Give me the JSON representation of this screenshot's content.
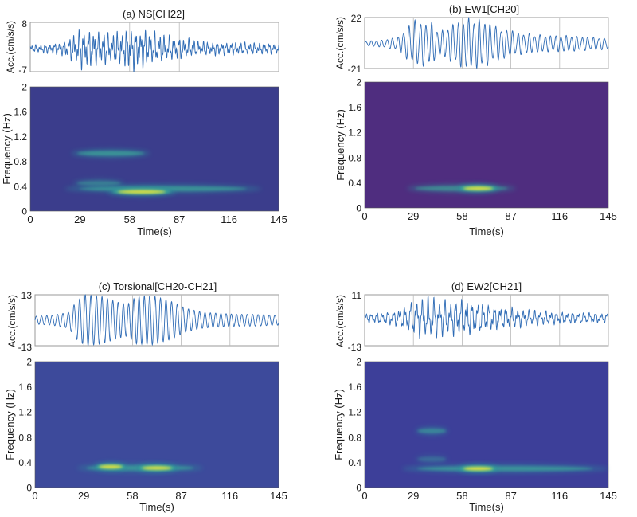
{
  "chart_data": [
    {
      "type": "line",
      "title": "(a) NS[CH22]",
      "ylabel": "Acc.(cm/s/s)",
      "ytick_labels": [
        "8",
        "-7"
      ],
      "ylim": [
        -7,
        8
      ],
      "xlim": [
        0,
        145
      ],
      "vertical_gridlines_at": [
        29,
        58,
        87,
        116,
        145
      ],
      "color": "#2e6bb5",
      "envelope": {
        "t": [
          0,
          10,
          20,
          25,
          30,
          40,
          50,
          60,
          70,
          80,
          90,
          100,
          110,
          120,
          130,
          145
        ],
        "a": [
          1.2,
          1.6,
          2.5,
          5.0,
          7.0,
          6.0,
          5.5,
          7.5,
          6.0,
          4.5,
          3.5,
          2.5,
          2.2,
          2.2,
          2.0,
          1.8
        ]
      },
      "carrier": [
        {
          "f": 0.36,
          "w": 1.0
        },
        {
          "f": 0.95,
          "w": 0.7
        },
        {
          "f": 0.55,
          "w": 0.4
        }
      ]
    },
    {
      "type": "heatmap",
      "ylabel": "Frequency (Hz)",
      "xlabel": "Time(s)",
      "x_ticks": [
        "0",
        "29",
        "58",
        "87",
        "116",
        "145"
      ],
      "y_ticks": [
        "0",
        "0.4",
        "0.8",
        "1.2",
        "1.6",
        "2"
      ],
      "xlim": [
        0,
        145
      ],
      "ylim": [
        0,
        2
      ],
      "background": "#3b3d8c",
      "blobs": [
        {
          "t0": 24,
          "t1": 70,
          "f": 0.93,
          "i": 0.75
        },
        {
          "t0": 20,
          "t1": 135,
          "f": 0.36,
          "i": 0.75
        },
        {
          "t0": 45,
          "t1": 85,
          "f": 0.31,
          "i": 1.0
        },
        {
          "t0": 25,
          "t1": 55,
          "f": 0.45,
          "i": 0.5
        }
      ]
    },
    {
      "type": "line",
      "title": "(b) EW1[CH20]",
      "ylabel": "Acc.(cm/s/s)",
      "ytick_labels": [
        "22",
        "-21"
      ],
      "ylim": [
        -21,
        22
      ],
      "xlim": [
        0,
        145
      ],
      "vertical_gridlines_at": [
        29,
        58,
        87,
        116,
        145
      ],
      "color": "#2e6bb5",
      "envelope": {
        "t": [
          0,
          10,
          20,
          25,
          30,
          40,
          45,
          50,
          60,
          70,
          80,
          90,
          100,
          110,
          120,
          130,
          145
        ],
        "a": [
          2,
          3,
          6,
          14,
          20,
          18,
          10,
          15,
          22,
          21,
          14,
          10,
          8,
          7,
          7,
          6,
          5
        ]
      },
      "carrier": [
        {
          "f": 0.31,
          "w": 1.0
        },
        {
          "f": 0.5,
          "w": 0.15
        }
      ]
    },
    {
      "type": "heatmap",
      "ylabel": "Frequency (Hz)",
      "xlabel": "Time(s)",
      "x_ticks": [
        "0",
        "29",
        "58",
        "87",
        "116",
        "145"
      ],
      "y_ticks": [
        "0",
        "0.4",
        "0.8",
        "1.2",
        "1.6",
        "2"
      ],
      "xlim": [
        0,
        145
      ],
      "ylim": [
        0,
        2
      ],
      "background": "#4f2d7f",
      "blobs": [
        {
          "t0": 25,
          "t1": 90,
          "f": 0.31,
          "i": 0.7
        },
        {
          "t0": 55,
          "t1": 80,
          "f": 0.31,
          "i": 1.0
        }
      ]
    },
    {
      "type": "line",
      "title": "(c) Torsional[CH20-CH21]",
      "ylabel": "Acc.(cm/s/s)",
      "ytick_labels": [
        "13",
        "-13"
      ],
      "ylim": [
        -13,
        13
      ],
      "xlim": [
        0,
        145
      ],
      "vertical_gridlines_at": [
        29,
        58,
        87,
        116,
        145
      ],
      "color": "#2e6bb5",
      "envelope": {
        "t": [
          0,
          10,
          20,
          25,
          30,
          40,
          50,
          55,
          60,
          70,
          80,
          90,
          100,
          110,
          120,
          130,
          145
        ],
        "a": [
          2,
          2.5,
          4,
          10,
          13,
          12,
          9,
          8,
          12,
          12.5,
          10,
          6,
          4,
          3.5,
          3,
          3,
          2.5
        ]
      },
      "carrier": [
        {
          "f": 0.31,
          "w": 1.0
        }
      ]
    },
    {
      "type": "heatmap",
      "ylabel": "Frequency (Hz)",
      "xlabel": "Time(s)",
      "x_ticks": [
        "0",
        "29",
        "58",
        "87",
        "116",
        "145"
      ],
      "y_ticks": [
        "0",
        "0.4",
        "0.8",
        "1.2",
        "1.6",
        "2"
      ],
      "xlim": [
        0,
        145
      ],
      "ylim": [
        0,
        2
      ],
      "background": "#3d4a9b",
      "blobs": [
        {
          "t0": 25,
          "t1": 100,
          "f": 0.31,
          "i": 0.75
        },
        {
          "t0": 35,
          "t1": 55,
          "f": 0.33,
          "i": 1.0
        },
        {
          "t0": 60,
          "t1": 85,
          "f": 0.31,
          "i": 1.0
        }
      ]
    },
    {
      "type": "line",
      "title": "(d) EW2[CH21]",
      "ylabel": "Acc.(cm/s/s)",
      "ytick_labels": [
        "11",
        "-13"
      ],
      "ylim": [
        -13,
        11
      ],
      "xlim": [
        0,
        145
      ],
      "vertical_gridlines_at": [
        29,
        58,
        87,
        116,
        145
      ],
      "color": "#2e6bb5",
      "envelope": {
        "t": [
          0,
          10,
          20,
          25,
          30,
          40,
          50,
          60,
          70,
          80,
          90,
          100,
          110,
          120,
          130,
          145
        ],
        "a": [
          2.5,
          3,
          4.5,
          7,
          10,
          11,
          9,
          10,
          8,
          6,
          5,
          4,
          3.5,
          3,
          3,
          2.5
        ]
      },
      "carrier": [
        {
          "f": 0.3,
          "w": 1.0
        },
        {
          "f": 0.9,
          "w": 0.45
        },
        {
          "f": 0.5,
          "w": 0.3
        }
      ]
    },
    {
      "type": "heatmap",
      "ylabel": "Frequency (Hz)",
      "xlabel": "Time(s)",
      "x_ticks": [
        "0",
        "29",
        "58",
        "87",
        "116",
        "145"
      ],
      "y_ticks": [
        "0",
        "0.4",
        "0.8",
        "1.2",
        "1.6",
        "2"
      ],
      "xlim": [
        0,
        145
      ],
      "ylim": [
        0,
        2
      ],
      "background": "#3d3f99",
      "blobs": [
        {
          "t0": 30,
          "t1": 50,
          "f": 0.9,
          "i": 0.6
        },
        {
          "t0": 22,
          "t1": 145,
          "f": 0.3,
          "i": 0.75
        },
        {
          "t0": 55,
          "t1": 80,
          "f": 0.3,
          "i": 1.0
        },
        {
          "t0": 30,
          "t1": 50,
          "f": 0.45,
          "i": 0.35
        }
      ]
    }
  ]
}
